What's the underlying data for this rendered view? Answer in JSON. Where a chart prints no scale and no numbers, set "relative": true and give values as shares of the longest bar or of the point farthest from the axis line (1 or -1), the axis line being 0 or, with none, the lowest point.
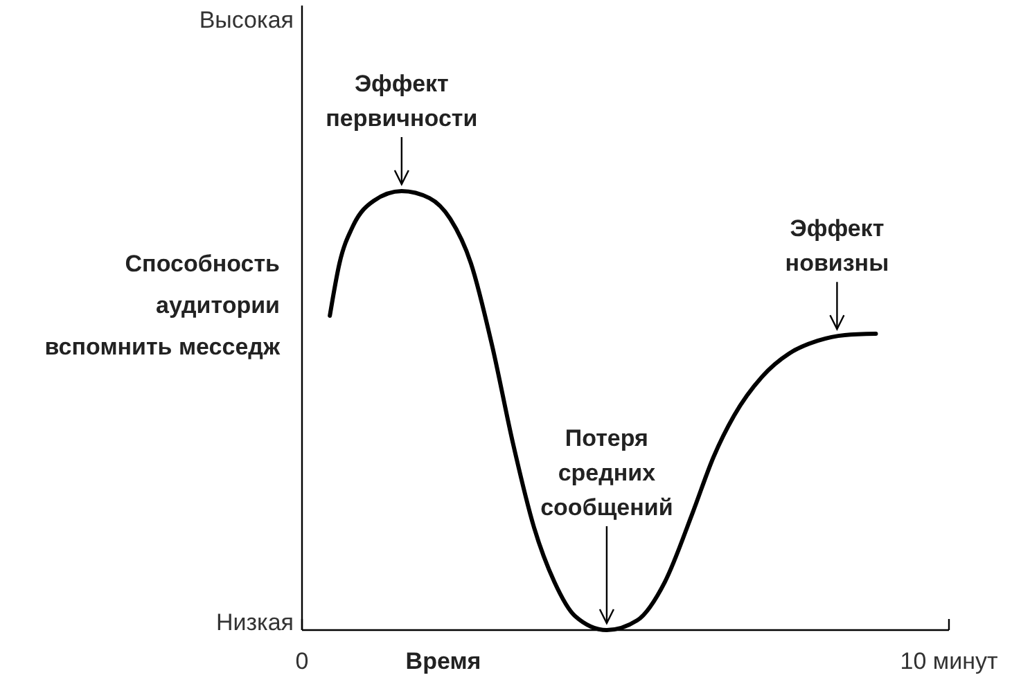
{
  "chart_data": {
    "type": "line",
    "relative": true,
    "xlabel": "Время",
    "ylabel": "Способность аудитории вспомнить месседж",
    "xlim": [
      0,
      10
    ],
    "xticks": [
      0,
      {
        "value": 10,
        "label": "10 минут"
      }
    ],
    "x": [
      0.43,
      0.58,
      0.79,
      1.11,
      1.54,
      1.97,
      2.29,
      2.61,
      2.94,
      3.26,
      3.58,
      3.9,
      4.22,
      4.71,
      5.18,
      5.61,
      6.04,
      6.36,
      6.68,
      7.11,
      7.54,
      7.97,
      8.39,
      8.87
    ],
    "series": [
      {
        "color": "#000000",
        "values": [
          0.716,
          0.836,
          0.921,
          0.978,
          1,
          0.984,
          0.937,
          0.836,
          0.647,
          0.426,
          0.237,
          0.11,
          0.032,
          0,
          0.022,
          0.11,
          0.268,
          0.394,
          0.489,
          0.577,
          0.631,
          0.659,
          0.672,
          0.675
        ]
      }
    ],
    "annotations": [
      "Высокая",
      "Низкая",
      {
        "text": "Эффект первичности",
        "x": 1.54,
        "y": 1
      },
      {
        "text": "Потеря средних сообщений",
        "x": 4.71,
        "y": 0
      },
      {
        "text": "Эффект новизны",
        "x": 8.27,
        "y": 0.67
      }
    ]
  }
}
